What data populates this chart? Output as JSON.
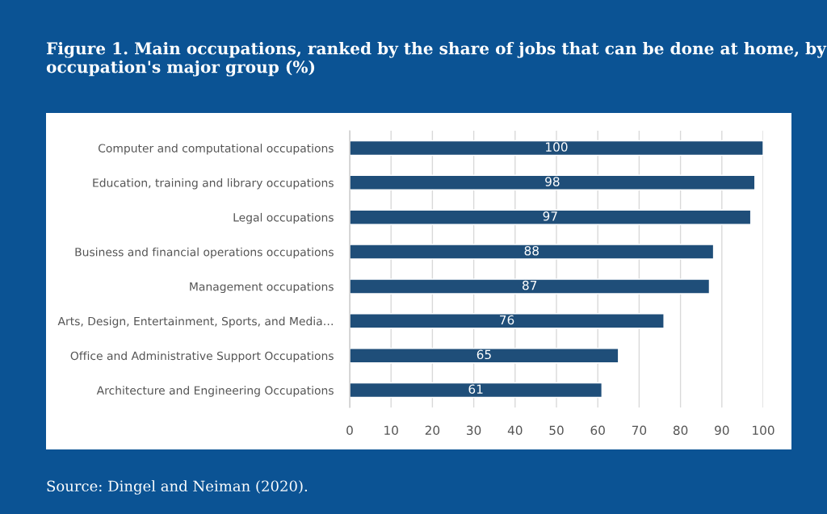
{
  "chart_data": {
    "type": "bar",
    "orientation": "horizontal",
    "title": "Figure 1. Main occupations, ranked by the share of jobs that can be done at home, by occupation's major group (%)",
    "categories": [
      "Computer and computational occupations",
      "Education, training and library occupations",
      "Legal occupations",
      "Business and financial operations occupations",
      "Management occupations",
      "Arts, Design, Entertainment, Sports, and Media…",
      "Office and Administrative Support Occupations",
      "Architecture and Engineering Occupations"
    ],
    "values": [
      100,
      98,
      97,
      88,
      87,
      76,
      65,
      61
    ],
    "color": "#1f4e79",
    "xlim": [
      0,
      100
    ],
    "xticks": [
      0,
      10,
      20,
      30,
      40,
      50,
      60,
      70,
      80,
      90,
      100
    ],
    "grid": "x",
    "data_labels": true,
    "legend": false,
    "annotations": [
      "Source: Dingel and Neiman (2020)."
    ]
  }
}
